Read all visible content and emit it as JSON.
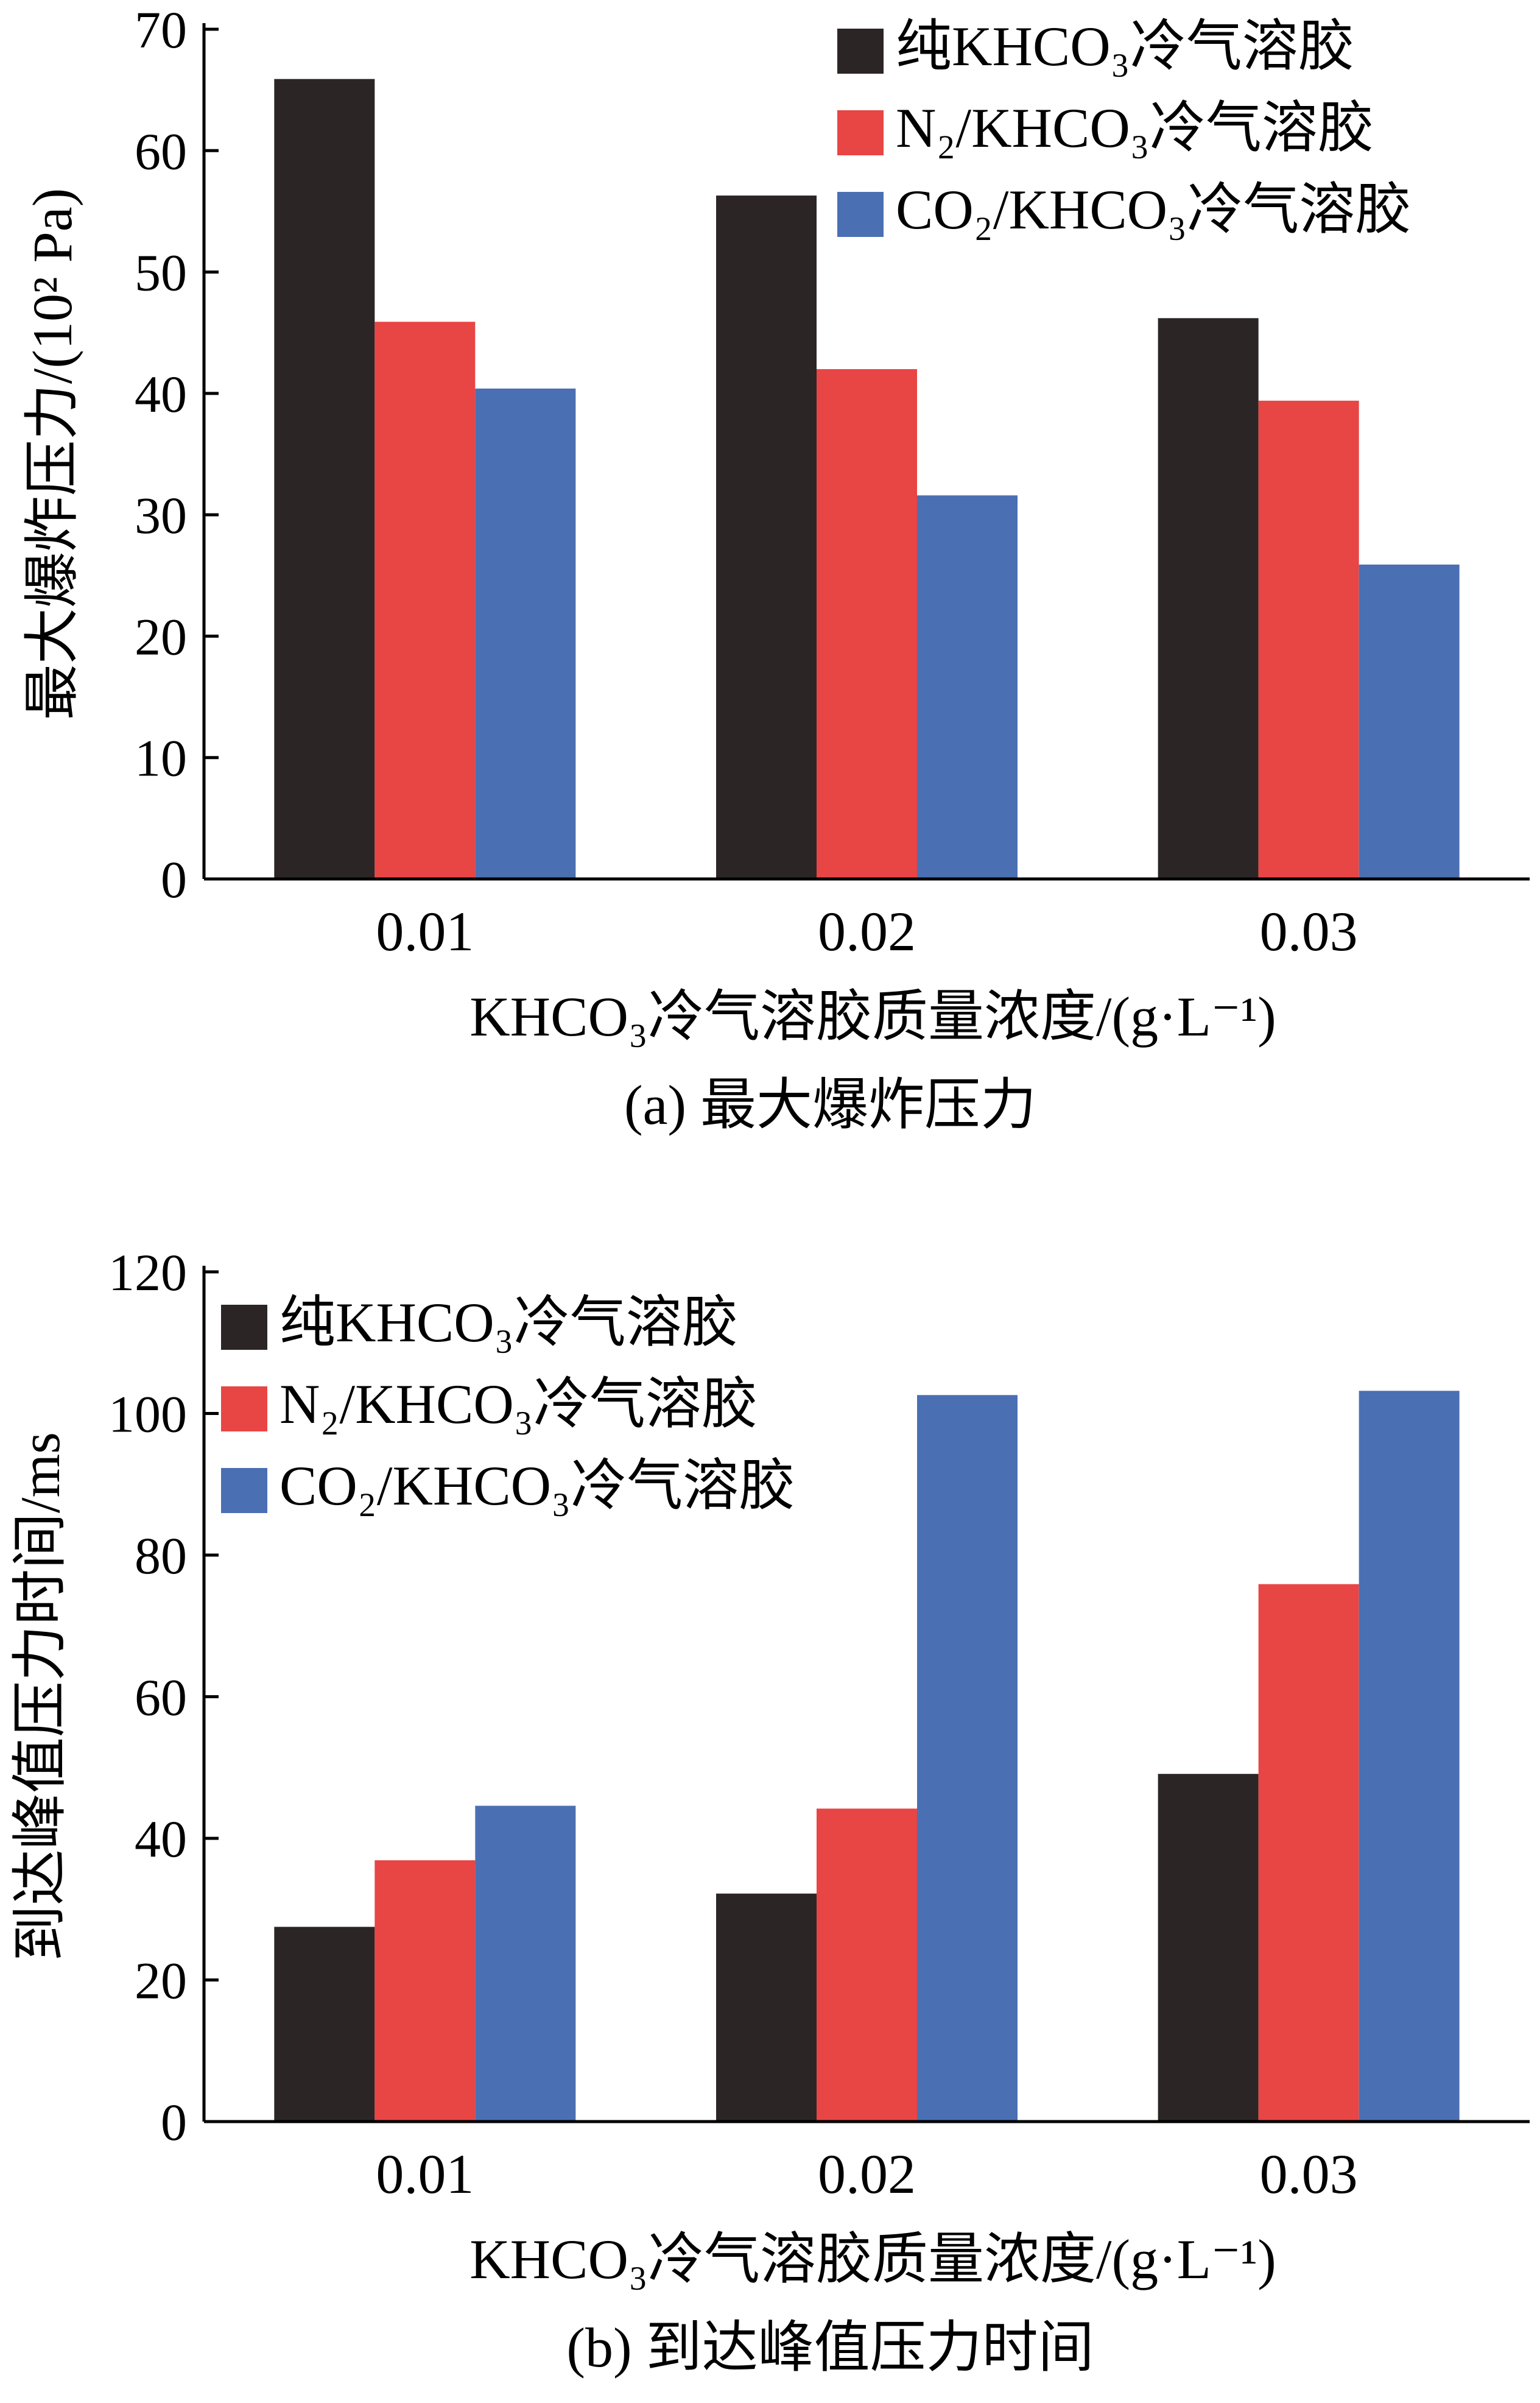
{
  "chart_data": [
    {
      "type": "bar",
      "categories": [
        "0.01",
        "0.02",
        "0.03"
      ],
      "series": [
        {
          "name": "纯KHCO₃冷气溶胶",
          "values": [
            65.9,
            56.3,
            46.2
          ],
          "color": "#2b2526"
        },
        {
          "name": "N₂/KHCO₃冷气溶胶",
          "values": [
            45.9,
            42.0,
            39.4
          ],
          "color": "#e84545"
        },
        {
          "name": "CO₂/KHCO₃冷气溶胶",
          "values": [
            40.4,
            31.6,
            25.9
          ],
          "color": "#4a6fb3"
        }
      ],
      "ylim": [
        0,
        70
      ],
      "yticks": [
        0,
        10,
        20,
        30,
        40,
        50,
        60,
        70
      ],
      "ylabel": "最大爆炸压力/(10² Pa)",
      "xlabel": "KHCO₃冷气溶胶质量浓度/(g·L⁻¹)",
      "caption": "(a)  最大爆炸压力",
      "legend": "top-right"
    },
    {
      "type": "bar",
      "categories": [
        "0.01",
        "0.02",
        "0.03"
      ],
      "series": [
        {
          "name": "纯KHCO₃冷气溶胶",
          "values": [
            27.5,
            32.2,
            49.1
          ],
          "color": "#2b2526"
        },
        {
          "name": "N₂/KHCO₃冷气溶胶",
          "values": [
            36.9,
            44.2,
            75.9
          ],
          "color": "#e84545"
        },
        {
          "name": "CO₂/KHCO₃冷气溶胶",
          "values": [
            44.6,
            102.6,
            103.2
          ],
          "color": "#4a6fb3"
        }
      ],
      "ylim": [
        0,
        120
      ],
      "yticks": [
        0,
        20,
        40,
        60,
        80,
        100,
        120
      ],
      "ylabel": "到达峰值压力时间/ms",
      "xlabel": "KHCO₃冷气溶胶质量浓度/(g·L⁻¹)",
      "caption": "(b)  到达峰值压力时间",
      "legend": "top-left"
    }
  ]
}
